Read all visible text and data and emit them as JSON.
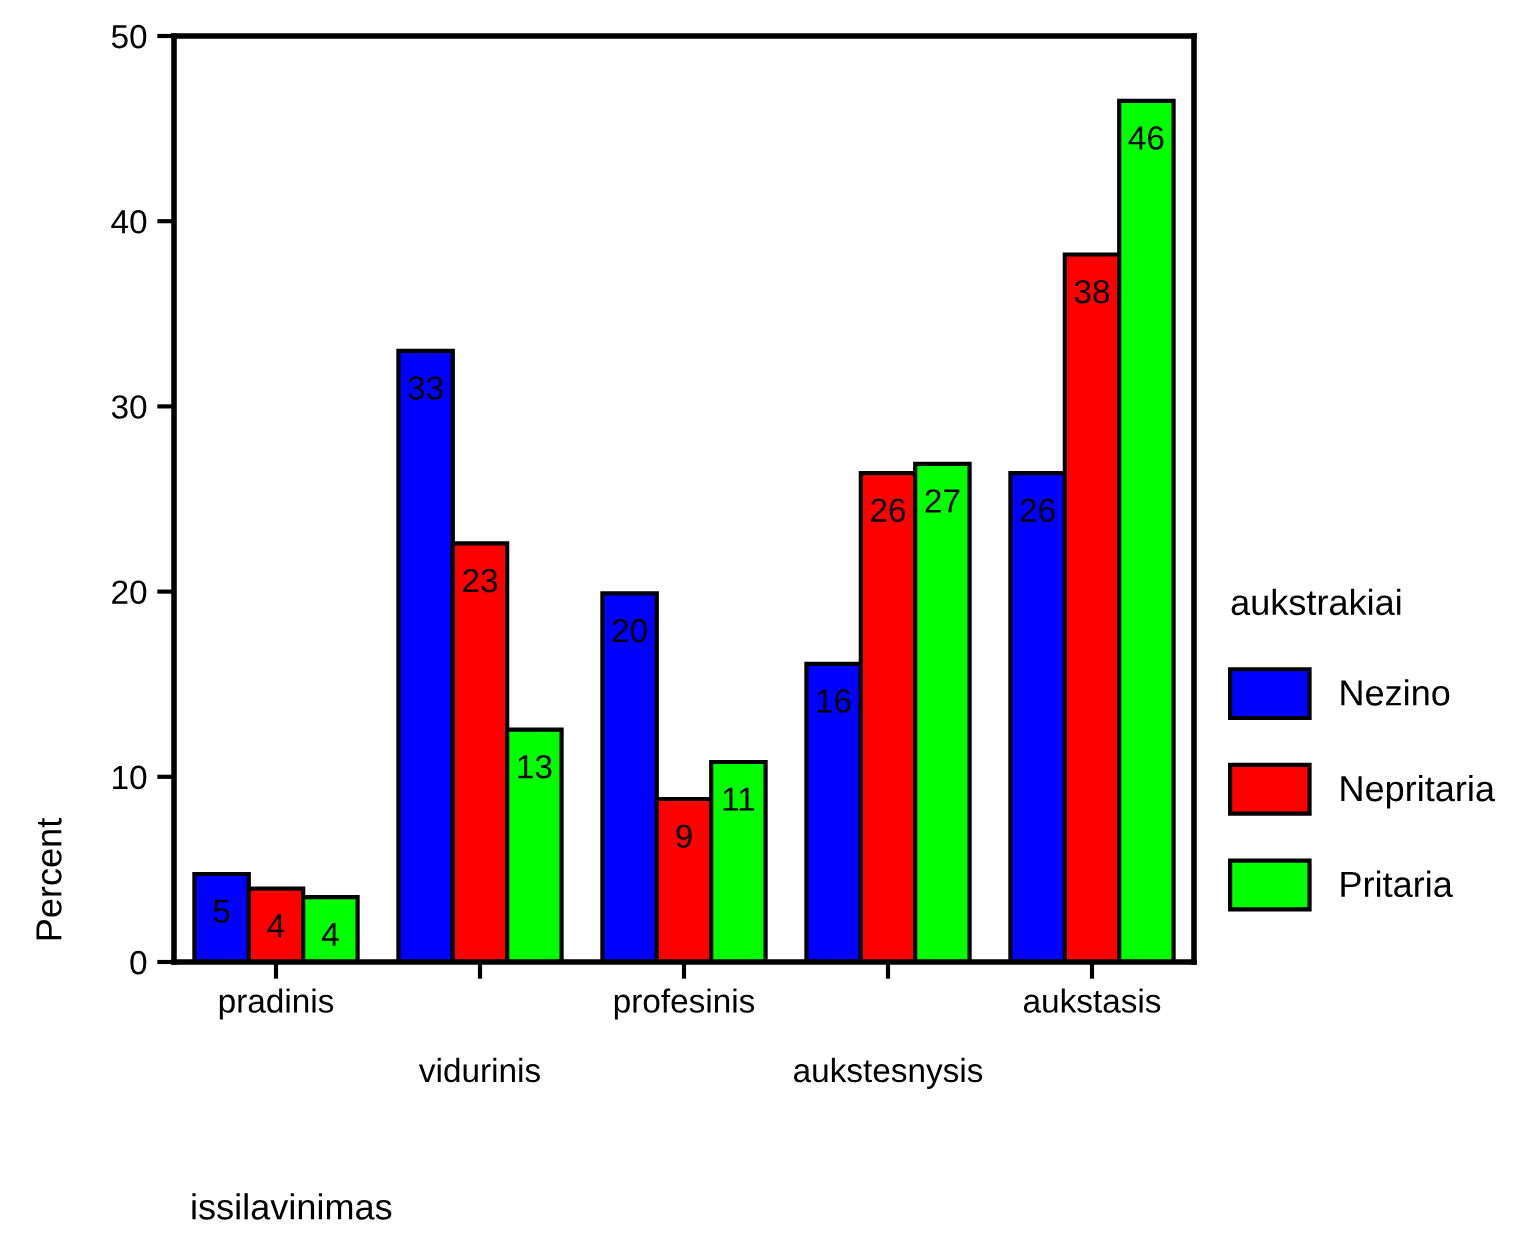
{
  "chart_data": {
    "type": "bar",
    "xlabel": "issilavinimas",
    "ylabel": "Percent",
    "legend_title": "aukstrakiai",
    "legend": "right",
    "categories": [
      "pradinis",
      "vidurinis",
      "profesinis",
      "aukstesnysis",
      "aukstasis"
    ],
    "series": [
      {
        "name": "Nezino",
        "color": "#0000ff",
        "values": [
          4.75,
          33.0,
          19.9,
          16.1,
          26.4
        ],
        "value_labels": [
          "5",
          "33",
          "20",
          "16",
          "26"
        ]
      },
      {
        "name": "Nepritaria",
        "color": "#ff0000",
        "values": [
          3.96,
          22.6,
          8.8,
          26.4,
          38.2
        ],
        "value_labels": [
          "4",
          "23",
          "9",
          "26",
          "38"
        ]
      },
      {
        "name": "Pritaria",
        "color": "#00ff00",
        "values": [
          3.5,
          12.55,
          10.8,
          26.9,
          46.5
        ],
        "value_labels": [
          "4",
          "13",
          "11",
          "27",
          "46"
        ]
      }
    ],
    "ylim": [
      0,
      50
    ],
    "yticks": [
      0,
      10,
      20,
      30,
      40,
      50
    ],
    "grid": false
  }
}
